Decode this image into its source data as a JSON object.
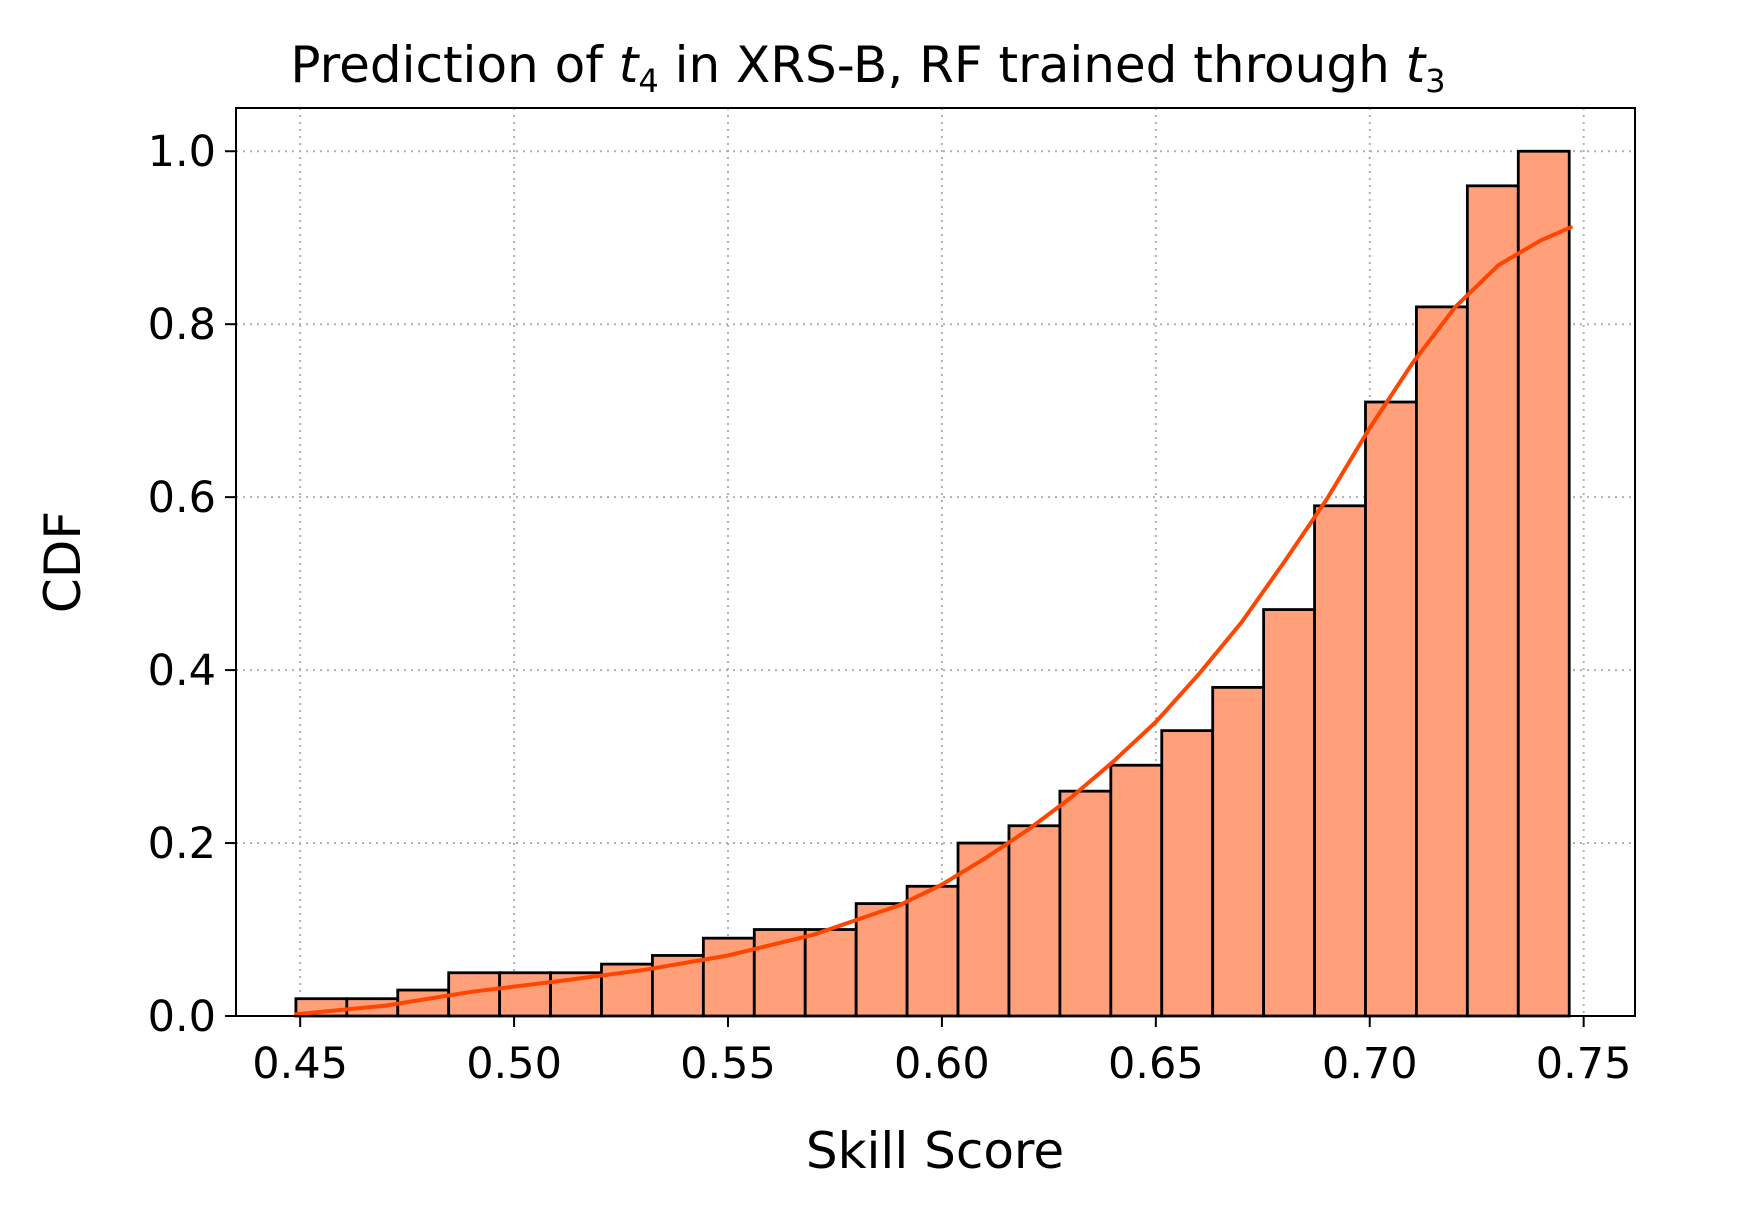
{
  "chart_data": {
    "type": "bar",
    "title_parts": {
      "before": "Prediction of ",
      "var_a": "t",
      "sub_a": "4",
      "middle": " in XRS-B, RF trained through ",
      "var_b": "t",
      "sub_b": "3"
    },
    "xlabel": "Skill Score",
    "ylabel": "CDF",
    "xlim": [
      0.435,
      0.762
    ],
    "ylim": [
      0.0,
      1.05
    ],
    "x_ticks": [
      0.45,
      0.5,
      0.55,
      0.6,
      0.65,
      0.7,
      0.75
    ],
    "x_tick_labels": [
      "0.45",
      "0.50",
      "0.55",
      "0.60",
      "0.65",
      "0.70",
      "0.75"
    ],
    "y_ticks": [
      0.0,
      0.2,
      0.4,
      0.6,
      0.8,
      1.0
    ],
    "y_tick_labels": [
      "0.0",
      "0.2",
      "0.4",
      "0.6",
      "0.8",
      "1.0"
    ],
    "grid": true,
    "bins": {
      "start": 0.449,
      "width": 0.011905,
      "values": [
        0.02,
        0.02,
        0.03,
        0.05,
        0.05,
        0.05,
        0.06,
        0.07,
        0.09,
        0.1,
        0.1,
        0.13,
        0.15,
        0.2,
        0.22,
        0.26,
        0.29,
        0.33,
        0.38,
        0.47,
        0.59,
        0.71,
        0.82,
        0.96,
        1.0
      ]
    },
    "bar_color": "#ffa07a",
    "bar_edge_color": "#000000",
    "curve": {
      "color": "#ff4500",
      "x": [
        0.449,
        0.47,
        0.49,
        0.51,
        0.53,
        0.55,
        0.57,
        0.59,
        0.6,
        0.61,
        0.62,
        0.63,
        0.64,
        0.65,
        0.66,
        0.67,
        0.68,
        0.69,
        0.7,
        0.71,
        0.72,
        0.73,
        0.74,
        0.747
      ],
      "y": [
        0.002,
        0.012,
        0.028,
        0.04,
        0.053,
        0.07,
        0.094,
        0.128,
        0.152,
        0.182,
        0.215,
        0.252,
        0.294,
        0.34,
        0.395,
        0.455,
        0.525,
        0.598,
        0.68,
        0.755,
        0.82,
        0.868,
        0.897,
        0.912
      ]
    }
  }
}
